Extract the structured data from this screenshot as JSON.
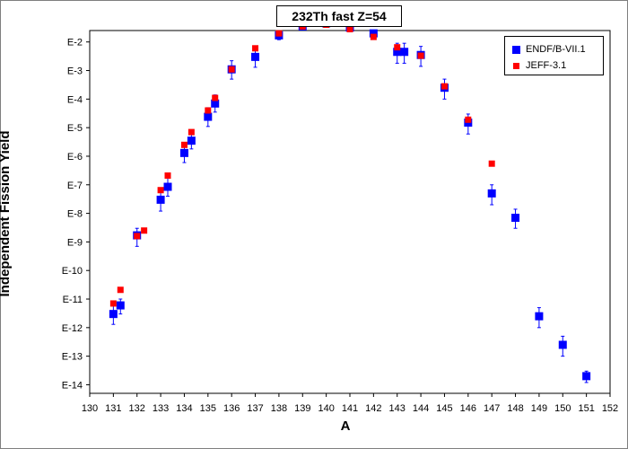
{
  "chart_data": {
    "type": "scatter",
    "title": "232Th fast Z=54",
    "xlabel": "A",
    "ylabel": "Independent Fission Yield",
    "xlim": [
      130,
      152
    ],
    "x_ticks": [
      "130",
      "131",
      "132",
      "133",
      "134",
      "135",
      "136",
      "137",
      "138",
      "139",
      "140",
      "141",
      "142",
      "143",
      "144",
      "145",
      "146",
      "147",
      "148",
      "149",
      "150",
      "151",
      "152"
    ],
    "y_scale": "log",
    "ylim_exp": [
      -14.3,
      -1.6
    ],
    "y_ticks": [
      "E-2",
      "E-3",
      "E-4",
      "E-5",
      "E-6",
      "E-7",
      "E-8",
      "E-9",
      "E-10",
      "E-11",
      "E-12",
      "E-13",
      "E-14"
    ],
    "legend_position": "top-right",
    "grid": false,
    "series": [
      {
        "name": "ENDF/B-VII.1",
        "color": "#0000ff",
        "marker": "square-large",
        "points": [
          {
            "x": 131.0,
            "y": 3e-12,
            "err": [
              1.3e-12,
              6e-12
            ]
          },
          {
            "x": 131.3,
            "y": 6e-12,
            "err": [
              3e-12,
              1e-11
            ]
          },
          {
            "x": 132.0,
            "y": 1.7e-09,
            "err": [
              7e-10,
              3e-09
            ]
          },
          {
            "x": 133.0,
            "y": 3e-08,
            "err": [
              1.2e-08,
              6e-08
            ]
          },
          {
            "x": 133.3,
            "y": 8.5e-08,
            "err": [
              4e-08,
              1.7e-07
            ]
          },
          {
            "x": 134.0,
            "y": 1.3e-06,
            "err": [
              6e-07,
              2.6e-06
            ]
          },
          {
            "x": 134.3,
            "y": 3.5e-06,
            "err": [
              1.8e-06,
              7e-06
            ]
          },
          {
            "x": 135.0,
            "y": 2.4e-05,
            "err": [
              1.1e-05,
              5e-05
            ]
          },
          {
            "x": 135.3,
            "y": 7e-05,
            "err": [
              3.5e-05,
              0.00014
            ]
          },
          {
            "x": 136.0,
            "y": 0.0011,
            "err": [
              0.0005,
              0.0022
            ]
          },
          {
            "x": 137.0,
            "y": 0.003,
            "err": [
              0.0013,
              0.006
            ]
          },
          {
            "x": 138.0,
            "y": 0.017,
            "err": [
              0.012,
              0.024
            ]
          },
          {
            "x": 139.0,
            "y": 0.035,
            "err": [
              0.03,
              0.04
            ]
          },
          {
            "x": 140.0,
            "y": 0.045,
            "err": [
              0.04,
              0.05
            ]
          },
          {
            "x": 141.0,
            "y": 0.032,
            "err": [
              0.027,
              0.038
            ]
          },
          {
            "x": 142.0,
            "y": 0.02,
            "err": [
              0.015,
              0.026
            ]
          },
          {
            "x": 143.0,
            "y": 0.0045,
            "err": [
              0.0018,
              0.009
            ]
          },
          {
            "x": 143.3,
            "y": 0.0045,
            "err": [
              0.0018,
              0.009
            ]
          },
          {
            "x": 144.0,
            "y": 0.0035,
            "err": [
              0.0014,
              0.007
            ]
          },
          {
            "x": 145.0,
            "y": 0.00025,
            "err": [
              0.0001,
              0.0005
            ]
          },
          {
            "x": 146.0,
            "y": 1.5e-05,
            "err": [
              6e-06,
              3e-05
            ]
          },
          {
            "x": 147.0,
            "y": 5e-08,
            "err": [
              2e-08,
              1e-07
            ]
          },
          {
            "x": 148.0,
            "y": 7e-09,
            "err": [
              3e-09,
              1.4e-08
            ]
          },
          {
            "x": 149.0,
            "y": 2.5e-12,
            "err": [
              1e-12,
              5e-12
            ]
          },
          {
            "x": 150.0,
            "y": 2.5e-13,
            "err": [
              1e-13,
              5e-13
            ]
          },
          {
            "x": 151.0,
            "y": 2e-14,
            "err": [
              1.2e-14,
              3e-14
            ]
          }
        ]
      },
      {
        "name": "JEFF-3.1",
        "color": "#ff0000",
        "marker": "square-small",
        "points": [
          {
            "x": 131.0,
            "y": 7e-12
          },
          {
            "x": 131.3,
            "y": 2.1e-11
          },
          {
            "x": 132.0,
            "y": 1.6e-09
          },
          {
            "x": 132.3,
            "y": 2.5e-09
          },
          {
            "x": 133.0,
            "y": 6.5e-08
          },
          {
            "x": 133.3,
            "y": 2.1e-07
          },
          {
            "x": 134.0,
            "y": 2.5e-06
          },
          {
            "x": 134.3,
            "y": 7e-06
          },
          {
            "x": 135.0,
            "y": 4e-05
          },
          {
            "x": 135.3,
            "y": 0.00011
          },
          {
            "x": 136.0,
            "y": 0.0011
          },
          {
            "x": 137.0,
            "y": 0.006
          },
          {
            "x": 138.0,
            "y": 0.02
          },
          {
            "x": 139.0,
            "y": 0.035
          },
          {
            "x": 140.0,
            "y": 0.04
          },
          {
            "x": 141.0,
            "y": 0.028
          },
          {
            "x": 142.0,
            "y": 0.015
          },
          {
            "x": 143.0,
            "y": 0.0065
          },
          {
            "x": 144.0,
            "y": 0.0033
          },
          {
            "x": 145.0,
            "y": 0.00028
          },
          {
            "x": 146.0,
            "y": 1.9e-05
          },
          {
            "x": 147.0,
            "y": 5.5e-07
          }
        ]
      }
    ]
  }
}
